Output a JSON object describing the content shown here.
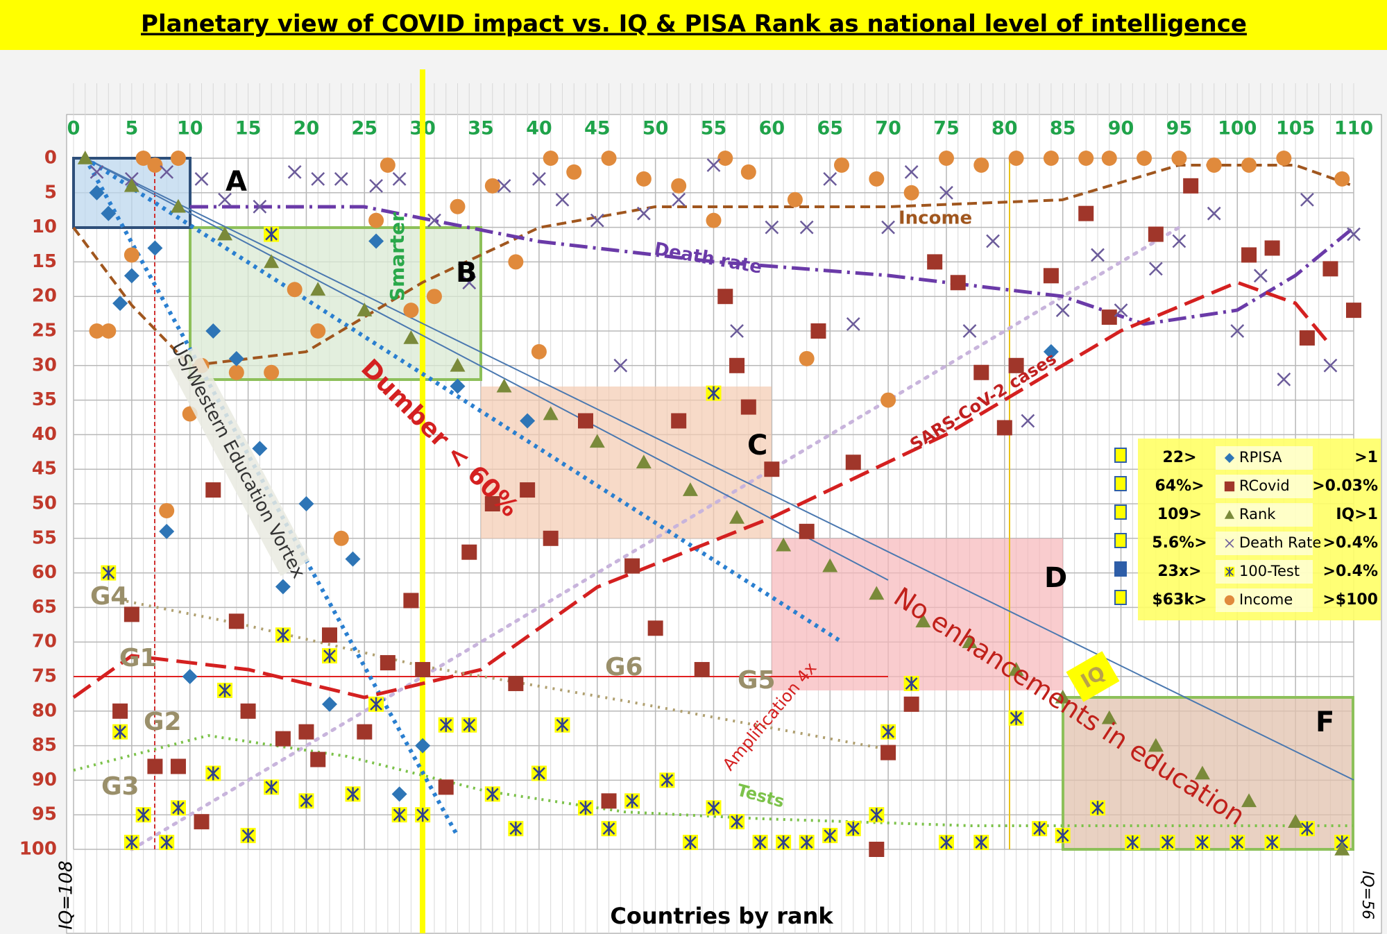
{
  "chart_data": {
    "type": "scatter",
    "title": "Planetary view of COVID impact vs. IQ & PISA Rank as national level of intelligence",
    "x_label": "Countries by rank",
    "left_label": "IQ=108",
    "right_label": "IQ=56",
    "y_inverted": true,
    "grid": true,
    "xlim": [
      0,
      110
    ],
    "ylim": [
      0,
      100
    ],
    "xticks": [
      0,
      5,
      10,
      15,
      20,
      25,
      30,
      35,
      40,
      45,
      50,
      55,
      60,
      65,
      70,
      75,
      80,
      85,
      90,
      95,
      100,
      105,
      110
    ],
    "yticks": [
      0,
      5,
      10,
      15,
      20,
      25,
      30,
      35,
      40,
      45,
      50,
      55,
      60,
      65,
      70,
      75,
      80,
      85,
      90,
      95,
      100
    ],
    "annotations": [
      "A",
      "B",
      "C",
      "D",
      "F",
      "G1",
      "G2",
      "G3",
      "G4",
      "G5",
      "G6",
      "Income",
      "Death rate",
      "SARS-CoV-2 cases",
      "Dumber < 60%",
      "US/Western Education Vortex",
      "Smarter",
      "No enhancements in education",
      "Amplification 4x",
      "Tests",
      "IQ"
    ],
    "series": [
      {
        "name": "RPISA",
        "marker": "diamond",
        "color": "#2e75b6",
        "legend_prefix": "22>",
        "legend_suffix": ">1",
        "x": [
          2,
          3,
          4,
          5,
          7,
          8,
          10,
          12,
          14,
          16,
          18,
          20,
          22,
          24,
          26,
          28,
          30,
          33,
          39,
          84
        ],
        "values": [
          5,
          8,
          21,
          17,
          13,
          54,
          75,
          25,
          29,
          42,
          62,
          50,
          79,
          58,
          12,
          92,
          85,
          33,
          38,
          28
        ]
      },
      {
        "name": "RCovid",
        "marker": "square",
        "color": "#a0362a",
        "legend_prefix": "64%>",
        "legend_suffix": ">0.03%",
        "x": [
          4,
          5,
          7,
          9,
          11,
          12,
          14,
          15,
          18,
          20,
          21,
          22,
          25,
          27,
          29,
          30,
          32,
          34,
          36,
          38,
          39,
          41,
          44,
          46,
          48,
          50,
          52,
          54,
          56,
          57,
          58,
          60,
          63,
          64,
          67,
          69,
          70,
          72,
          74,
          76,
          78,
          80,
          81,
          84,
          87,
          89,
          93,
          96,
          101,
          103,
          106,
          108,
          110
        ],
        "values": [
          80,
          66,
          88,
          88,
          96,
          48,
          67,
          80,
          84,
          83,
          87,
          69,
          83,
          73,
          64,
          74,
          91,
          57,
          50,
          76,
          48,
          55,
          38,
          93,
          59,
          68,
          38,
          74,
          20,
          30,
          36,
          45,
          54,
          25,
          44,
          100,
          86,
          79,
          15,
          18,
          31,
          39,
          30,
          17,
          8,
          23,
          11,
          4,
          14,
          13,
          26,
          16,
          22
        ]
      },
      {
        "name": "Rank",
        "marker": "triangle",
        "color": "#7a8a3a",
        "legend_prefix": "109>",
        "legend_suffix": "IQ>1",
        "x": [
          1,
          5,
          9,
          13,
          17,
          21,
          25,
          29,
          33,
          37,
          41,
          45,
          49,
          53,
          57,
          61,
          65,
          69,
          73,
          77,
          81,
          85,
          89,
          93,
          97,
          101,
          105,
          109
        ],
        "values": [
          0,
          4,
          7,
          11,
          15,
          19,
          22,
          26,
          30,
          33,
          37,
          41,
          44,
          48,
          52,
          56,
          59,
          63,
          67,
          70,
          74,
          78,
          81,
          85,
          89,
          93,
          96,
          100
        ]
      },
      {
        "name": "Death Rate",
        "marker": "x",
        "color": "#6b5b9a",
        "legend_prefix": "5.6%>",
        "legend_suffix": ">0.4%",
        "x": [
          2,
          5,
          8,
          11,
          13,
          16,
          19,
          21,
          23,
          26,
          28,
          31,
          34,
          37,
          40,
          42,
          45,
          47,
          49,
          52,
          55,
          57,
          60,
          63,
          65,
          67,
          70,
          72,
          75,
          77,
          79,
          82,
          85,
          88,
          90,
          93,
          95,
          98,
          100,
          102,
          104,
          106,
          108,
          110
        ],
        "values": [
          2,
          3,
          2,
          3,
          6,
          7,
          2,
          3,
          3,
          4,
          3,
          9,
          18,
          4,
          3,
          6,
          9,
          30,
          8,
          6,
          1,
          25,
          10,
          10,
          3,
          24,
          10,
          2,
          5,
          25,
          12,
          38,
          22,
          14,
          22,
          16,
          12,
          8,
          25,
          17,
          32,
          6,
          30,
          11
        ]
      },
      {
        "name": "100-Test",
        "marker": "star",
        "color": "#2f3f8f",
        "legend_prefix": "23x>",
        "legend_suffix": ">0.4%",
        "x": [
          3,
          4,
          5,
          6,
          8,
          9,
          12,
          13,
          15,
          17,
          17,
          18,
          20,
          22,
          24,
          26,
          28,
          30,
          32,
          34,
          36,
          38,
          40,
          42,
          44,
          46,
          48,
          51,
          53,
          55,
          55,
          57,
          59,
          61,
          63,
          65,
          67,
          69,
          70,
          72,
          75,
          78,
          81,
          83,
          85,
          88,
          91,
          94,
          97,
          100,
          103,
          106,
          109
        ],
        "values": [
          60,
          83,
          99,
          95,
          99,
          94,
          89,
          77,
          98,
          91,
          11,
          69,
          93,
          72,
          92,
          79,
          95,
          95,
          82,
          82,
          92,
          97,
          89,
          82,
          94,
          97,
          93,
          90,
          99,
          94,
          34,
          96,
          99,
          99,
          99,
          98,
          97,
          95,
          83,
          76,
          99,
          99,
          81,
          97,
          98,
          94,
          99,
          99,
          99,
          99,
          99,
          97,
          99
        ]
      },
      {
        "name": "Income",
        "marker": "circle",
        "color": "#e08a3c",
        "legend_prefix": "$63k>",
        "legend_suffix": ">$100",
        "x": [
          2,
          3,
          5,
          6,
          7,
          8,
          9,
          10,
          11,
          14,
          17,
          19,
          21,
          23,
          26,
          27,
          29,
          31,
          33,
          36,
          38,
          40,
          41,
          43,
          46,
          49,
          52,
          55,
          56,
          58,
          62,
          63,
          66,
          69,
          70,
          72,
          75,
          78,
          81,
          84,
          87,
          89,
          92,
          95,
          98,
          101,
          104,
          109
        ],
        "values": [
          25,
          25,
          14,
          0,
          1,
          51,
          0,
          37,
          30,
          31,
          31,
          19,
          25,
          55,
          9,
          1,
          22,
          20,
          7,
          4,
          15,
          28,
          0,
          2,
          0,
          3,
          4,
          9,
          0,
          2,
          6,
          29,
          1,
          3,
          35,
          5,
          0,
          1,
          0,
          0,
          0,
          0,
          0,
          0,
          1,
          1,
          0,
          3
        ]
      }
    ]
  }
}
